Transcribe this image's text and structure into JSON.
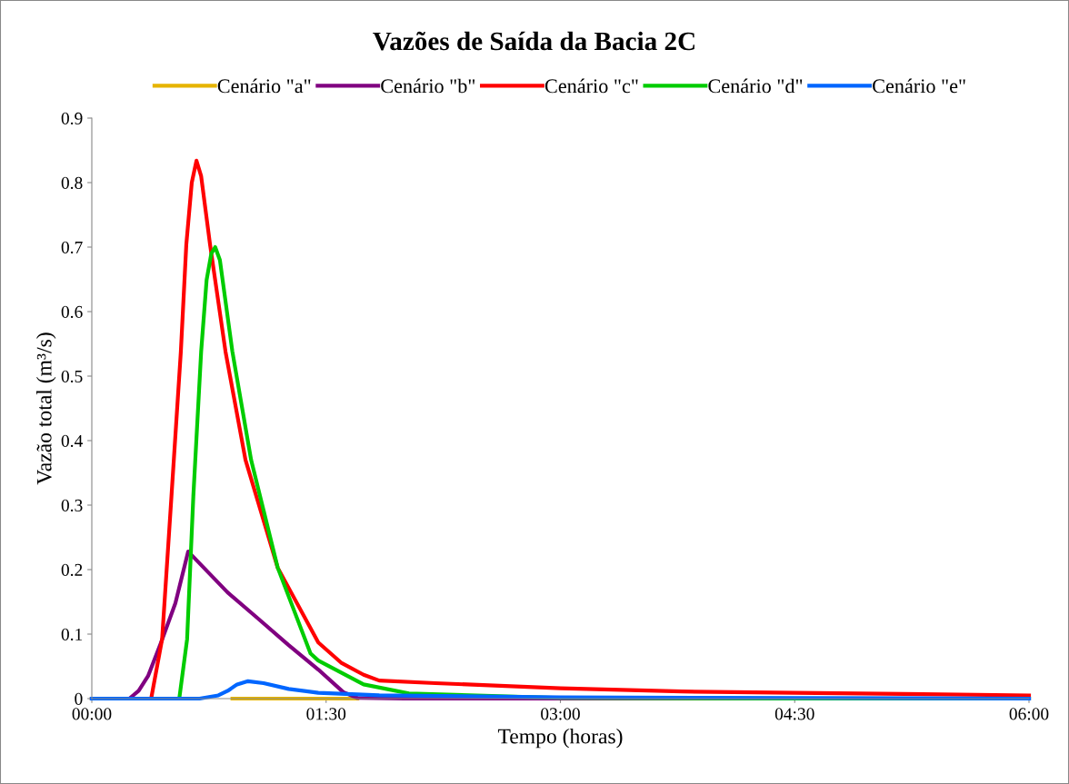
{
  "chart_data": {
    "type": "line",
    "title": "Vazões de Saída da Bacia 2C",
    "xlabel": "Tempo (horas)",
    "ylabel": "Vazão total (m³/s)",
    "xlim": [
      0,
      6
    ],
    "xticks": [
      {
        "value": 0,
        "label": "00:00"
      },
      {
        "value": 1.5,
        "label": "01:30"
      },
      {
        "value": 3,
        "label": "03:00"
      },
      {
        "value": 4.5,
        "label": "04:30"
      },
      {
        "value": 6,
        "label": "06:00"
      }
    ],
    "ylim": [
      0,
      0.9
    ],
    "yticks": [
      0,
      0.1,
      0.2,
      0.3,
      0.4,
      0.5,
      0.6,
      0.7,
      0.8,
      0.9
    ],
    "grid": false,
    "legend": "top",
    "marker": "none",
    "line_style": "solid",
    "series": [
      {
        "name": "Cenário \"a\"",
        "color": "#e6b400",
        "x": [
          0.9,
          1.1,
          1.3,
          1.5,
          1.7
        ],
        "values": [
          0,
          0,
          0,
          0,
          0
        ]
      },
      {
        "name": "Cenário \"b\"",
        "color": "#800080",
        "x": [
          0,
          0.24,
          0.3,
          0.36,
          0.44,
          0.535,
          0.617,
          0.868,
          1.06,
          1.26,
          1.45,
          1.61,
          1.7,
          2,
          3,
          4.5,
          6
        ],
        "values": [
          0,
          0,
          0.012,
          0.035,
          0.085,
          0.148,
          0.228,
          0.165,
          0.125,
          0.083,
          0.045,
          0.01,
          0.001,
          0,
          0,
          0,
          0
        ]
      },
      {
        "name": "Cenário \"c\"",
        "color": "#ff0000",
        "x": [
          0,
          0.38,
          0.45,
          0.51,
          0.57,
          0.605,
          0.64,
          0.67,
          0.7,
          0.757,
          0.856,
          0.984,
          1.19,
          1.45,
          1.6,
          1.74,
          1.84,
          2.2,
          3,
          3.78,
          4.5,
          6
        ],
        "values": [
          0,
          0,
          0.092,
          0.314,
          0.538,
          0.704,
          0.8,
          0.834,
          0.81,
          0.704,
          0.538,
          0.37,
          0.203,
          0.087,
          0.055,
          0.037,
          0.028,
          0.024,
          0.016,
          0.011,
          0.009,
          0.005
        ]
      },
      {
        "name": "Cenário \"d\"",
        "color": "#00cc00",
        "x": [
          0,
          0.56,
          0.61,
          0.65,
          0.7,
          0.735,
          0.765,
          0.79,
          0.82,
          0.9,
          1.02,
          1.19,
          1.4,
          1.45,
          1.74,
          2.03,
          3,
          4.5,
          6
        ],
        "values": [
          0,
          0,
          0.092,
          0.314,
          0.538,
          0.649,
          0.69,
          0.7,
          0.68,
          0.538,
          0.37,
          0.203,
          0.07,
          0.059,
          0.022,
          0.008,
          0.001,
          0,
          0
        ]
      },
      {
        "name": "Cenário \"e\"",
        "color": "#0066ff",
        "x": [
          0,
          0.69,
          0.81,
          0.87,
          0.93,
          1.0,
          1.1,
          1.26,
          1.45,
          1.84,
          2.61,
          3,
          4.5,
          6
        ],
        "values": [
          0,
          0,
          0.005,
          0.012,
          0.022,
          0.027,
          0.024,
          0.015,
          0.009,
          0.005,
          0.003,
          0.002,
          0.001,
          0
        ]
      }
    ]
  }
}
